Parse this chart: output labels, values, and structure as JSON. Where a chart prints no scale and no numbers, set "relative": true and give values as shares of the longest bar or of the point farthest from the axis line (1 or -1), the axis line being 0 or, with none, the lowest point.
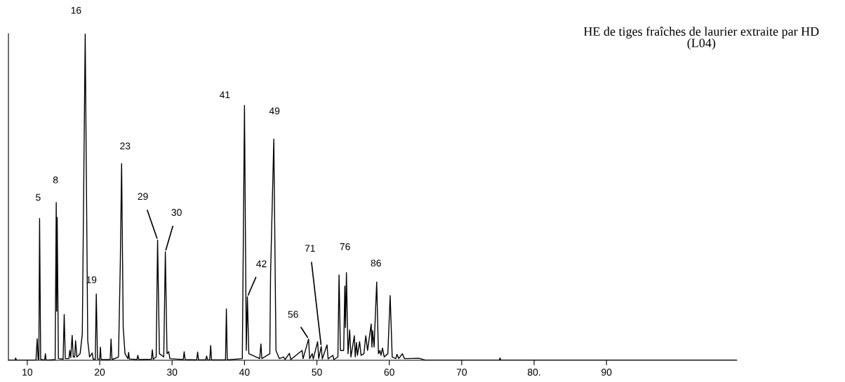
{
  "chart_data": {
    "type": "line",
    "title": "HE de tiges fraîches de laurier extraite par HD\n(L04)",
    "relative": true,
    "tick_labels": "x",
    "grid": false,
    "marker": "none",
    "line_style": "solid",
    "xlim": [
      7.4,
      108
    ],
    "xticks": [
      10,
      20,
      30,
      40,
      50,
      60,
      70,
      {
        "value": 80,
        "label": "80."
      },
      90
    ],
    "series": [
      {
        "color": "#000000",
        "x": [
          7.4,
          8.3,
          8.4,
          8.5,
          11.2,
          11.37,
          11.5,
          11.6,
          11.7,
          11.85,
          12.4,
          12.5,
          12.6,
          13.85,
          14.0,
          14.06,
          14.13,
          14.3,
          14.95,
          15.1,
          15.25,
          15.75,
          15.87,
          16.0,
          16.2,
          16.35,
          16.55,
          16.67,
          16.85,
          17.3,
          17.6,
          18.0,
          18.35,
          18.6,
          18.97,
          19.1,
          19.4,
          19.53,
          19.7,
          20.0,
          20.1,
          20.2,
          21.45,
          21.57,
          21.7,
          22.6,
          22.85,
          23.03,
          23.25,
          23.5,
          23.9,
          24.0,
          24.1,
          25.15,
          25.27,
          25.4,
          27.15,
          27.27,
          27.4,
          27.8,
          28.0,
          28.25,
          28.85,
          29.07,
          29.3,
          29.53,
          29.7,
          31.55,
          31.67,
          31.8,
          33.4,
          33.53,
          33.65,
          34.65,
          34.77,
          34.9,
          35.2,
          35.33,
          35.45,
          37.38,
          37.5,
          37.62,
          39.7,
          40.0,
          40.25,
          40.4,
          40.6,
          42.1,
          42.27,
          42.4,
          43.5,
          43.6,
          44.05,
          44.35,
          44.8,
          45.4,
          45.6,
          46.2,
          46.4,
          47.95,
          48.1,
          48.85,
          49.0,
          49.36,
          49.5,
          50.1,
          50.25,
          50.6,
          50.75,
          51.4,
          51.55,
          52.2,
          52.35,
          52.9,
          53.06,
          53.25,
          53.7,
          53.86,
          53.95,
          54.08,
          54.2,
          54.3,
          54.53,
          54.7,
          55.17,
          55.3,
          55.46,
          55.6,
          55.9,
          56.1,
          56.5,
          56.75,
          57.0,
          57.5,
          57.6,
          57.7,
          57.9,
          58.26,
          58.5,
          58.7,
          58.85,
          59.06,
          59.3,
          59.8,
          60.12,
          60.4,
          60.9,
          61.06,
          61.3,
          61.8,
          62.1,
          64.1,
          65.0,
          75.2,
          75.3,
          75.4,
          108
        ],
        "values": [
          0,
          0,
          0.007,
          0,
          0,
          0.066,
          0.002,
          0.003,
          0.434,
          0.003,
          0,
          0.02,
          0,
          0.002,
          0.483,
          0.15,
          0.437,
          0.005,
          0.003,
          0.14,
          0.005,
          0.005,
          0.03,
          0.008,
          0.076,
          0.01,
          0.01,
          0.06,
          0.01,
          0.02,
          0.08,
          1.0,
          0.06,
          0.01,
          0.022,
          0.003,
          0.003,
          0.203,
          0.004,
          0.003,
          0.04,
          0.002,
          0.002,
          0.065,
          0.002,
          0.01,
          0.3,
          0.602,
          0.1,
          0.02,
          0.005,
          0.024,
          0.004,
          0.002,
          0.015,
          0.002,
          0.003,
          0.032,
          0.003,
          0.01,
          0.368,
          0.02,
          0.01,
          0.332,
          0.02,
          0.026,
          0.005,
          0.002,
          0.026,
          0.002,
          0.001,
          0.025,
          0.001,
          0.001,
          0.013,
          0.001,
          0.001,
          0.045,
          0.001,
          0.001,
          0.157,
          0.001,
          0.005,
          0.78,
          0.03,
          0.194,
          0.02,
          0.005,
          0.05,
          0.005,
          0.02,
          0.26,
          0.677,
          0.03,
          0.005,
          0.01,
          0.002,
          0.021,
          0.002,
          0.03,
          0.005,
          0.065,
          0.005,
          0.02,
          0.004,
          0.057,
          0.005,
          0.042,
          0.004,
          0.047,
          0.004,
          0.015,
          0.002,
          0.01,
          0.261,
          0.03,
          0.03,
          0.227,
          0.1,
          0.268,
          0.123,
          0.02,
          0.093,
          0.01,
          0.075,
          0.01,
          0.054,
          0.015,
          0.057,
          0.015,
          0.02,
          0.075,
          0.03,
          0.111,
          0.04,
          0.091,
          0.04,
          0.239,
          0.02,
          0.03,
          0.015,
          0.037,
          0.01,
          0.02,
          0.198,
          0.01,
          0.005,
          0.018,
          0.005,
          0.02,
          0.005,
          0.006,
          0,
          0,
          0.007,
          0,
          0
        ]
      }
    ],
    "annotations": [
      {
        "text": "5",
        "x": 11.7,
        "y": 0.434
      },
      {
        "text": "8",
        "x": 14.0,
        "y": 0.483
      },
      {
        "text": "16",
        "x": 18.0,
        "y": 1.0
      },
      {
        "text": "19",
        "x": 19.53,
        "y": 0.203
      },
      {
        "text": "23",
        "x": 23.03,
        "y": 0.602
      },
      {
        "text": "29",
        "x": 28.0,
        "y": 0.368
      },
      {
        "text": "30",
        "x": 29.07,
        "y": 0.332
      },
      {
        "text": "41",
        "x": 40.0,
        "y": 0.78
      },
      {
        "text": "42",
        "x": 40.4,
        "y": 0.194
      },
      {
        "text": "49",
        "x": 44.05,
        "y": 0.677
      },
      {
        "text": "56",
        "x": 48.85,
        "y": 0.065
      },
      {
        "text": "71",
        "x": 50.6,
        "y": 0.042
      },
      {
        "text": "76",
        "x": 54.08,
        "y": 0.268
      },
      {
        "text": "86",
        "x": 58.26,
        "y": 0.239
      }
    ]
  }
}
